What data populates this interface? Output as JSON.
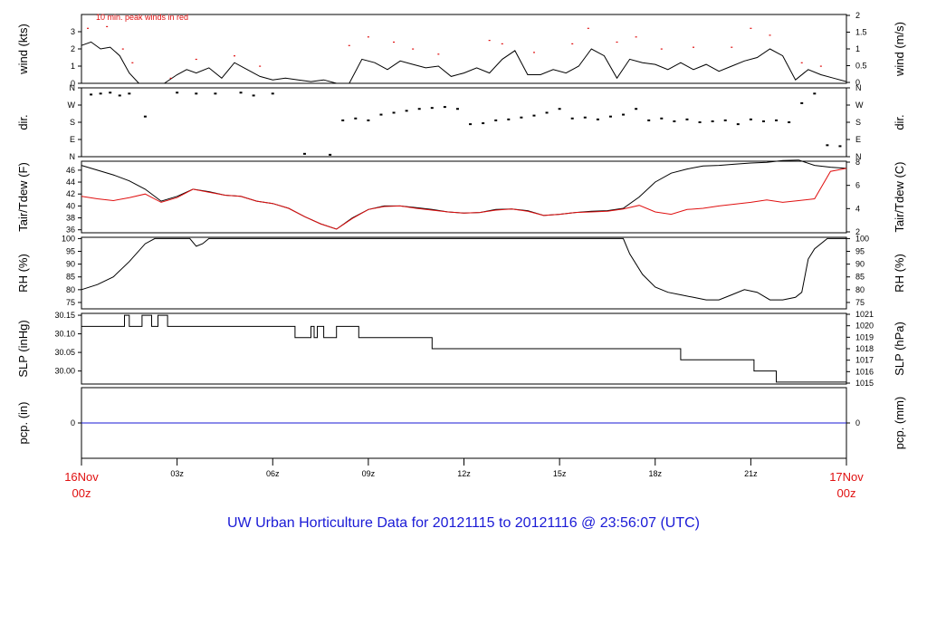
{
  "title": "UW Urban Horticulture Data for 20121115  to  20121116 @ 23:56:07  (UTC)",
  "colors": {
    "title": "#1a1ad6",
    "day_labels": "#e01010",
    "peak_winds": "#e01010",
    "dewpoint": "#e01010",
    "precip": "#1a1ad6",
    "series": "#000000"
  },
  "time_axis": {
    "day_start": {
      "line1": "16Nov",
      "line2": "00z"
    },
    "day_end": {
      "line1": "17Nov",
      "line2": "00z"
    },
    "ticks": [
      "03z",
      "06z",
      "09z",
      "12z",
      "15z",
      "18z",
      "21z"
    ],
    "range_hours": [
      0,
      24
    ]
  },
  "chart_data": [
    {
      "panel": "wind",
      "type": "line",
      "ylabel_left": "wind (kts)",
      "ylabel_right": "wind (m/s)",
      "annotation": "10 min. peak winds in red",
      "ylim": [
        0,
        4
      ],
      "left_ticks": [
        0,
        1,
        2,
        3
      ],
      "right_ticks": [
        "0",
        "0.5",
        "1",
        "1.5",
        "2"
      ],
      "series": [
        {
          "values_hours": [
            0,
            0.3,
            0.6,
            0.9,
            1.2,
            1.5,
            1.8,
            2.2,
            2.6,
            3,
            3.3,
            3.6,
            4,
            4.4,
            4.8,
            5.2,
            5.6,
            6,
            6.4,
            6.8,
            7.2,
            7.6,
            8,
            8.4,
            8.8,
            9.2,
            9.6,
            10,
            10.4,
            10.8,
            11.2,
            11.6,
            12,
            12.4,
            12.8,
            13.2,
            13.6,
            14,
            14.4,
            14.8,
            15.2,
            15.6,
            16,
            16.4,
            16.8,
            17.2,
            17.6,
            18,
            18.4,
            18.8,
            19.2,
            19.6,
            20,
            20.4,
            20.8,
            21.2,
            21.6,
            22,
            22.4,
            22.8,
            23.2,
            23.6,
            24
          ],
          "values_kts": [
            2.2,
            2.4,
            2.0,
            2.1,
            1.6,
            0.6,
            0,
            0,
            0,
            0.5,
            0.8,
            0.6,
            0.9,
            0.3,
            1.2,
            0.8,
            0.4,
            0.2,
            0.3,
            0.2,
            0.1,
            0.2,
            0,
            0,
            1.4,
            1.2,
            0.8,
            1.3,
            1.1,
            0.9,
            1.0,
            0.4,
            0.6,
            0.9,
            0.6,
            1.4,
            1.9,
            0.5,
            0.5,
            0.8,
            0.6,
            1.0,
            2.0,
            1.6,
            0.3,
            1.4,
            1.2,
            1.1,
            0.8,
            1.2,
            0.8,
            1.1,
            0.7,
            1.0,
            1.3,
            1.5,
            2.0,
            1.6,
            0.2,
            0.8,
            0.5,
            0.3,
            0.1
          ]
        },
        {
          "values_hours": [
            0.2,
            0.8,
            1.3,
            1.6,
            2.8,
            3.6,
            4.8,
            5.6,
            8.4,
            9.0,
            9.8,
            10.4,
            11.2,
            12.8,
            13.2,
            14.2,
            15.4,
            15.9,
            16.8,
            17.4,
            18.2,
            19.2,
            20.4,
            21.0,
            21.6,
            22.6,
            23.2
          ],
          "values_kts": [
            3.2,
            3.3,
            2.0,
            1.2,
            0.3,
            1.4,
            1.6,
            1.0,
            2.2,
            2.7,
            2.4,
            2.0,
            1.7,
            2.5,
            2.3,
            1.8,
            2.3,
            3.2,
            2.4,
            2.7,
            2.0,
            2.1,
            2.1,
            3.2,
            2.8,
            1.2,
            1.0
          ]
        }
      ]
    },
    {
      "panel": "direction",
      "type": "scatter",
      "ylabel_left": "dir.",
      "ylabel_right": "dir.",
      "ylim": [
        0,
        360
      ],
      "tick_labels": [
        "N",
        "E",
        "S",
        "W",
        "N"
      ],
      "x_hours": [
        0.3,
        0.6,
        0.9,
        1.2,
        1.5,
        2.0,
        3.0,
        3.6,
        4.2,
        5.0,
        5.4,
        6.0,
        7.0,
        7.8,
        8.2,
        8.6,
        9.0,
        9.4,
        9.8,
        10.2,
        10.6,
        11.0,
        11.4,
        11.8,
        12.2,
        12.6,
        13.0,
        13.4,
        13.8,
        14.2,
        14.6,
        15.0,
        15.4,
        15.8,
        16.2,
        16.6,
        17.0,
        17.4,
        17.8,
        18.2,
        18.6,
        19.0,
        19.4,
        19.8,
        20.2,
        20.6,
        21.0,
        21.4,
        21.8,
        22.2,
        22.6,
        23.0,
        23.4,
        23.8
      ],
      "deg": [
        325,
        330,
        335,
        320,
        330,
        210,
        335,
        330,
        330,
        335,
        320,
        330,
        15,
        10,
        190,
        200,
        190,
        220,
        230,
        240,
        250,
        255,
        260,
        250,
        170,
        175,
        190,
        195,
        205,
        215,
        230,
        250,
        200,
        205,
        195,
        210,
        220,
        250,
        190,
        200,
        185,
        195,
        180,
        185,
        190,
        170,
        195,
        185,
        190,
        180,
        280,
        330,
        60,
        55
      ]
    },
    {
      "panel": "temperature",
      "type": "line",
      "ylabel_left": "Tair/Tdew (F)",
      "ylabel_right": "Tair/Tdew (C)",
      "ylim": [
        35.5,
        47.5
      ],
      "left_ticks": [
        36,
        38,
        40,
        42,
        44,
        46
      ],
      "right_ticks": [
        "2",
        "4",
        "6",
        "8"
      ],
      "series": [
        {
          "name_key": "Tair",
          "x_hours": [
            0,
            0.5,
            1,
            1.5,
            2,
            2.5,
            3,
            3.5,
            4,
            4.5,
            5,
            5.5,
            6,
            6.5,
            7,
            7.5,
            8,
            8.5,
            9,
            9.5,
            10,
            10.5,
            11,
            11.5,
            12,
            12.5,
            13,
            13.5,
            14,
            14.5,
            15,
            15.5,
            16,
            16.5,
            17,
            17.5,
            18,
            18.5,
            19,
            19.5,
            20,
            20.5,
            21,
            21.5,
            22,
            22.5,
            23,
            23.5,
            24
          ],
          "values": [
            46.8,
            46.0,
            45.2,
            44.2,
            42.8,
            40.8,
            41.6,
            42.8,
            42.4,
            41.8,
            41.6,
            40.8,
            40.4,
            39.6,
            38.2,
            37.0,
            36.1,
            38.0,
            39.4,
            40.0,
            40.0,
            39.7,
            39.4,
            39.0,
            38.8,
            38.9,
            39.4,
            39.5,
            39.2,
            38.4,
            38.6,
            38.9,
            39.1,
            39.2,
            39.6,
            41.5,
            44.0,
            45.5,
            46.2,
            46.7,
            46.8,
            47.0,
            47.2,
            47.3,
            47.6,
            47.7,
            46.8,
            46.5,
            46.3
          ]
        },
        {
          "name_key": "Tdew",
          "x_hours": [
            0,
            0.5,
            1,
            1.5,
            2,
            2.5,
            3,
            3.5,
            4,
            4.5,
            5,
            5.5,
            6,
            6.5,
            7,
            7.5,
            8,
            8.5,
            9,
            9.5,
            10,
            10.5,
            11,
            11.5,
            12,
            12.5,
            13,
            13.5,
            14,
            14.5,
            15,
            15.5,
            16,
            16.5,
            17,
            17.5,
            18,
            18.5,
            19,
            19.5,
            20,
            20.5,
            21,
            21.5,
            22,
            22.5,
            23,
            23.5,
            24
          ],
          "values": [
            41.6,
            41.2,
            40.9,
            41.4,
            42.0,
            40.6,
            41.4,
            42.8,
            42.3,
            41.8,
            41.6,
            40.8,
            40.4,
            39.6,
            38.2,
            37.0,
            36.1,
            37.9,
            39.4,
            39.9,
            40.0,
            39.6,
            39.3,
            39.0,
            38.8,
            38.9,
            39.3,
            39.5,
            39.1,
            38.4,
            38.6,
            38.9,
            39.0,
            39.1,
            39.5,
            40.1,
            39.0,
            38.6,
            39.4,
            39.6,
            40.0,
            40.3,
            40.6,
            41.0,
            40.6,
            40.9,
            41.2,
            45.8,
            46.3
          ]
        }
      ]
    },
    {
      "panel": "rh",
      "type": "line",
      "ylabel_left": "RH (%)",
      "ylabel_right": "RH (%)",
      "ylim": [
        72.5,
        100.5
      ],
      "left_ticks": [
        75,
        80,
        85,
        90,
        95,
        100
      ],
      "right_ticks": [
        "75",
        "80",
        "85",
        "90",
        "95",
        "100"
      ],
      "x_hours": [
        0,
        0.5,
        1,
        1.5,
        2,
        2.3,
        3,
        3.4,
        3.6,
        3.8,
        4,
        5,
        6,
        7,
        8,
        9,
        10,
        11,
        12,
        13,
        14,
        15,
        16,
        17,
        17.2,
        17.6,
        18,
        18.4,
        18.8,
        19.2,
        19.6,
        20,
        20.4,
        20.8,
        21.2,
        21.6,
        22,
        22.4,
        22.6,
        22.8,
        23,
        23.4,
        24
      ],
      "values": [
        80,
        82,
        85,
        91,
        98,
        100,
        100,
        100,
        97,
        98,
        100,
        100,
        100,
        100,
        100,
        100,
        100,
        100,
        100,
        100,
        100,
        100,
        100,
        100,
        94,
        86,
        81,
        79,
        78,
        77,
        76,
        76,
        78,
        80,
        79,
        76,
        76,
        77,
        79,
        92,
        96,
        100,
        100
      ]
    },
    {
      "panel": "slp",
      "type": "line",
      "ylabel_left": "SLP (inHg)",
      "ylabel_right": "SLP (hPa)",
      "ylim": [
        29.965,
        30.155
      ],
      "left_ticks": [
        "30.00",
        "30.05",
        "30.10",
        "30.15"
      ],
      "left_tick_values": [
        30.0,
        30.05,
        30.1,
        30.15
      ],
      "right_ticks": [
        "1015",
        "1016",
        "1017",
        "1018",
        "1019",
        "1020",
        "1021"
      ],
      "x_hours": [
        0,
        1.35,
        1.35,
        1.5,
        1.5,
        1.9,
        1.9,
        2.2,
        2.2,
        2.4,
        2.4,
        2.7,
        2.7,
        6.7,
        6.7,
        7.2,
        7.2,
        7.3,
        7.3,
        7.4,
        7.4,
        7.6,
        7.6,
        8.0,
        8.0,
        8.7,
        8.7,
        11.0,
        11.0,
        18.8,
        18.8,
        21.1,
        21.1,
        21.8,
        21.8,
        24
      ],
      "values": [
        30.12,
        30.12,
        30.15,
        30.15,
        30.12,
        30.12,
        30.15,
        30.15,
        30.12,
        30.12,
        30.15,
        30.15,
        30.12,
        30.12,
        30.09,
        30.09,
        30.12,
        30.12,
        30.09,
        30.09,
        30.12,
        30.12,
        30.09,
        30.09,
        30.12,
        30.12,
        30.09,
        30.09,
        30.06,
        30.06,
        30.03,
        30.03,
        30.0,
        30.0,
        29.97,
        29.97
      ]
    },
    {
      "panel": "precip",
      "type": "line",
      "ylabel_left": "pcp. (in)",
      "ylabel_right": "pcp. (mm)",
      "ylim": [
        -1,
        1
      ],
      "left_ticks": [
        "0"
      ],
      "right_ticks": [
        "0"
      ],
      "x_hours": [
        0,
        24
      ],
      "values": [
        0,
        0
      ]
    }
  ]
}
